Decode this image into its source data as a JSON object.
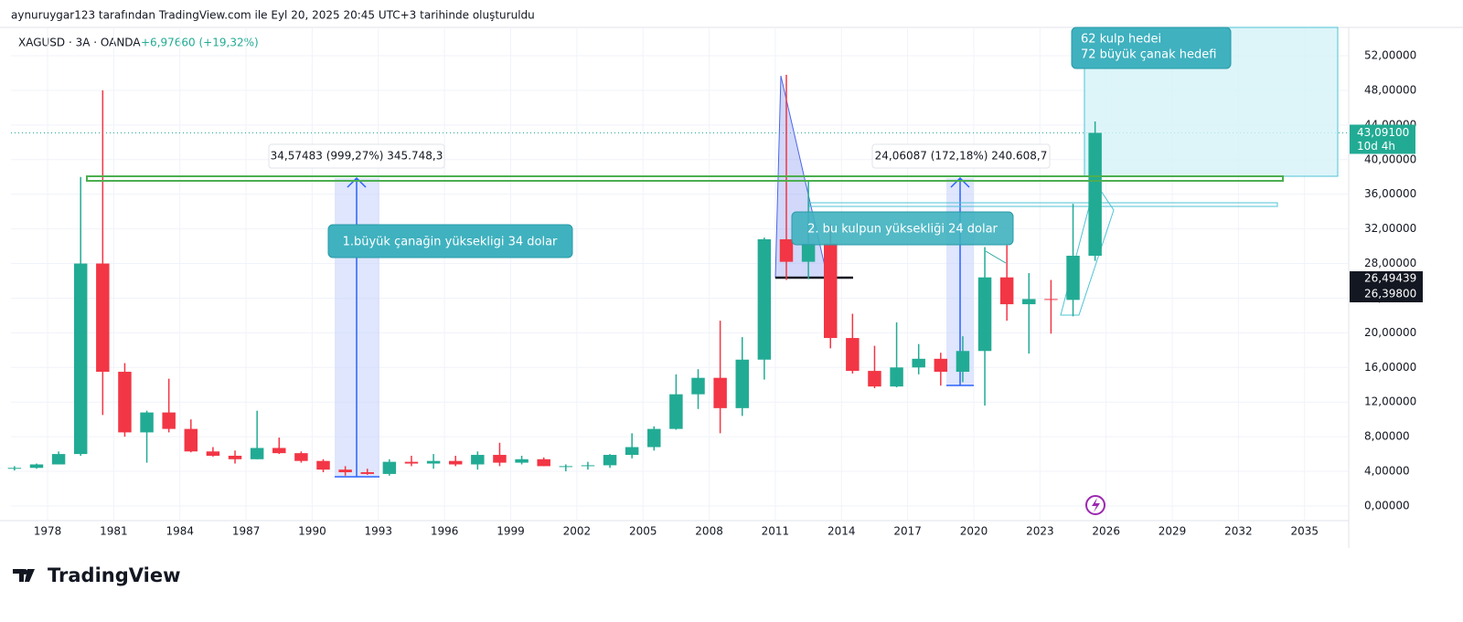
{
  "header": {
    "caption": "aynuruygar123 tarafından TradingView.com ile Eyl 20, 2025 20:45 UTC+3 tarihinde oluşturuldu"
  },
  "footer": {
    "logo": "TradingView"
  },
  "chart_data": {
    "type": "candlestick",
    "title": "XAGUSD · 3A · OANDA",
    "change": "+6,97660 (+19,32%)",
    "up_color": "#22ab94",
    "down_color": "#f23645",
    "x": [
      1976,
      1977,
      1978,
      1979,
      1980,
      1981,
      1982,
      1983,
      1984,
      1985,
      1986,
      1987,
      1988,
      1989,
      1990,
      1991,
      1992,
      1993,
      1994,
      1995,
      1996,
      1997,
      1998,
      1999,
      2000,
      2001,
      2002,
      2003,
      2004,
      2005,
      2006,
      2007,
      2008,
      2009,
      2010,
      2011,
      2012,
      2013,
      2014,
      2015,
      2016,
      2017,
      2018,
      2019,
      2020,
      2021,
      2022,
      2023,
      2024,
      2025
    ],
    "open": [
      4.3,
      4.4,
      4.8,
      6.0,
      28,
      15.5,
      8.5,
      10.8,
      8.9,
      6.3,
      5.8,
      5.4,
      6.7,
      6.1,
      5.2,
      4.2,
      3.9,
      3.7,
      5.1,
      4.9,
      5.2,
      4.8,
      5.9,
      5.0,
      5.4,
      4.6,
      4.6,
      4.7,
      5.9,
      6.8,
      8.9,
      12.9,
      14.8,
      11.3,
      16.9,
      30.8,
      28.2,
      30.3,
      19.4,
      15.6,
      13.8,
      16.0,
      17.0,
      15.5,
      17.9,
      26.4,
      23.3,
      23.9,
      23.8,
      28.9
    ],
    "high": [
      4.6,
      4.9,
      6.3,
      38,
      48,
      16.5,
      11,
      14.7,
      10,
      6.8,
      6.4,
      11,
      7.9,
      6.3,
      5.4,
      4.6,
      4.3,
      5.4,
      5.8,
      6.0,
      5.8,
      6.3,
      7.3,
      5.8,
      5.6,
      4.8,
      5.1,
      6.0,
      8.4,
      9.2,
      15.2,
      15.8,
      21.4,
      19.5,
      31,
      49.8,
      37.5,
      32.5,
      22.2,
      18.5,
      21.2,
      18.7,
      17.7,
      19.6,
      29.9,
      30.1,
      26.9,
      26.1,
      34.9,
      44.4
    ],
    "low": [
      4.1,
      4.3,
      4.8,
      5.8,
      10.5,
      8,
      5,
      8.5,
      6.2,
      5.7,
      4.9,
      5.4,
      6.0,
      5.0,
      3.9,
      3.5,
      3.6,
      3.5,
      4.6,
      4.3,
      4.6,
      4.2,
      4.6,
      4.8,
      4.6,
      4.0,
      4.2,
      4.4,
      5.5,
      6.4,
      8.8,
      11.2,
      8.4,
      10.4,
      14.6,
      26.1,
      26.2,
      18.2,
      15.3,
      13.6,
      13.7,
      15.2,
      13.9,
      14.3,
      11.6,
      21.4,
      17.6,
      19.9,
      21.9,
      28.3
    ],
    "close": [
      4.4,
      4.8,
      6.0,
      28,
      15.5,
      8.5,
      10.8,
      8.9,
      6.3,
      5.8,
      5.4,
      6.7,
      6.1,
      5.2,
      4.2,
      3.9,
      3.7,
      5.1,
      4.9,
      5.2,
      4.8,
      5.9,
      5.0,
      5.4,
      4.6,
      4.6,
      4.7,
      5.9,
      6.8,
      8.9,
      12.9,
      14.8,
      11.3,
      16.9,
      30.8,
      28.2,
      30.3,
      19.4,
      15.6,
      13.8,
      16.0,
      17.0,
      15.5,
      17.9,
      26.4,
      23.3,
      23.9,
      23.8,
      28.9,
      43.091
    ],
    "xlim": [
      1976.34,
      2037
    ],
    "xticks": [
      1978,
      1981,
      1984,
      1987,
      1990,
      1993,
      1996,
      1999,
      2002,
      2005,
      2008,
      2011,
      2014,
      2017,
      2020,
      2023,
      2026,
      2029,
      2032,
      2035
    ],
    "ylim": [
      -1.69,
      55.27
    ],
    "yticks": [
      {
        "value": 0,
        "label": "0,00000"
      },
      {
        "value": 4,
        "label": "4,00000"
      },
      {
        "value": 8,
        "label": "8,00000"
      },
      {
        "value": 12,
        "label": "12,00000"
      },
      {
        "value": 16,
        "label": "16,00000"
      },
      {
        "value": 20,
        "label": "20,00000"
      },
      {
        "value": 24,
        "label": "24,00000"
      },
      {
        "value": 28,
        "label": "28,00000"
      },
      {
        "value": 32,
        "label": "32,00000"
      },
      {
        "value": 36,
        "label": "36,00000"
      },
      {
        "value": 40,
        "label": "40,00000"
      },
      {
        "value": 44,
        "label": "44,00000"
      },
      {
        "value": 48,
        "label": "48,00000"
      },
      {
        "value": 52,
        "label": "52,00000"
      }
    ],
    "last_price": {
      "value": 43.091,
      "label": "43,09100",
      "countdown": "10d 4h",
      "color": "#22ab94"
    },
    "price_labels": [
      {
        "value": 26.49439,
        "label": "26,49439"
      },
      {
        "value": 26.398,
        "label": "26,39800"
      }
    ],
    "annotations": {
      "measure1": "34,57483 (999,27%) 345.748,3",
      "measure2": "24,06087 (172,18%) 240.608,7",
      "callout1": "1.büyük çanağin yüksekligi 34 dolar",
      "callout2": "2. bu kulpun yüksekliği 24 dolar",
      "target1": "62 kulp hedei",
      "target2": "72 büyük çanak hedefi"
    }
  }
}
